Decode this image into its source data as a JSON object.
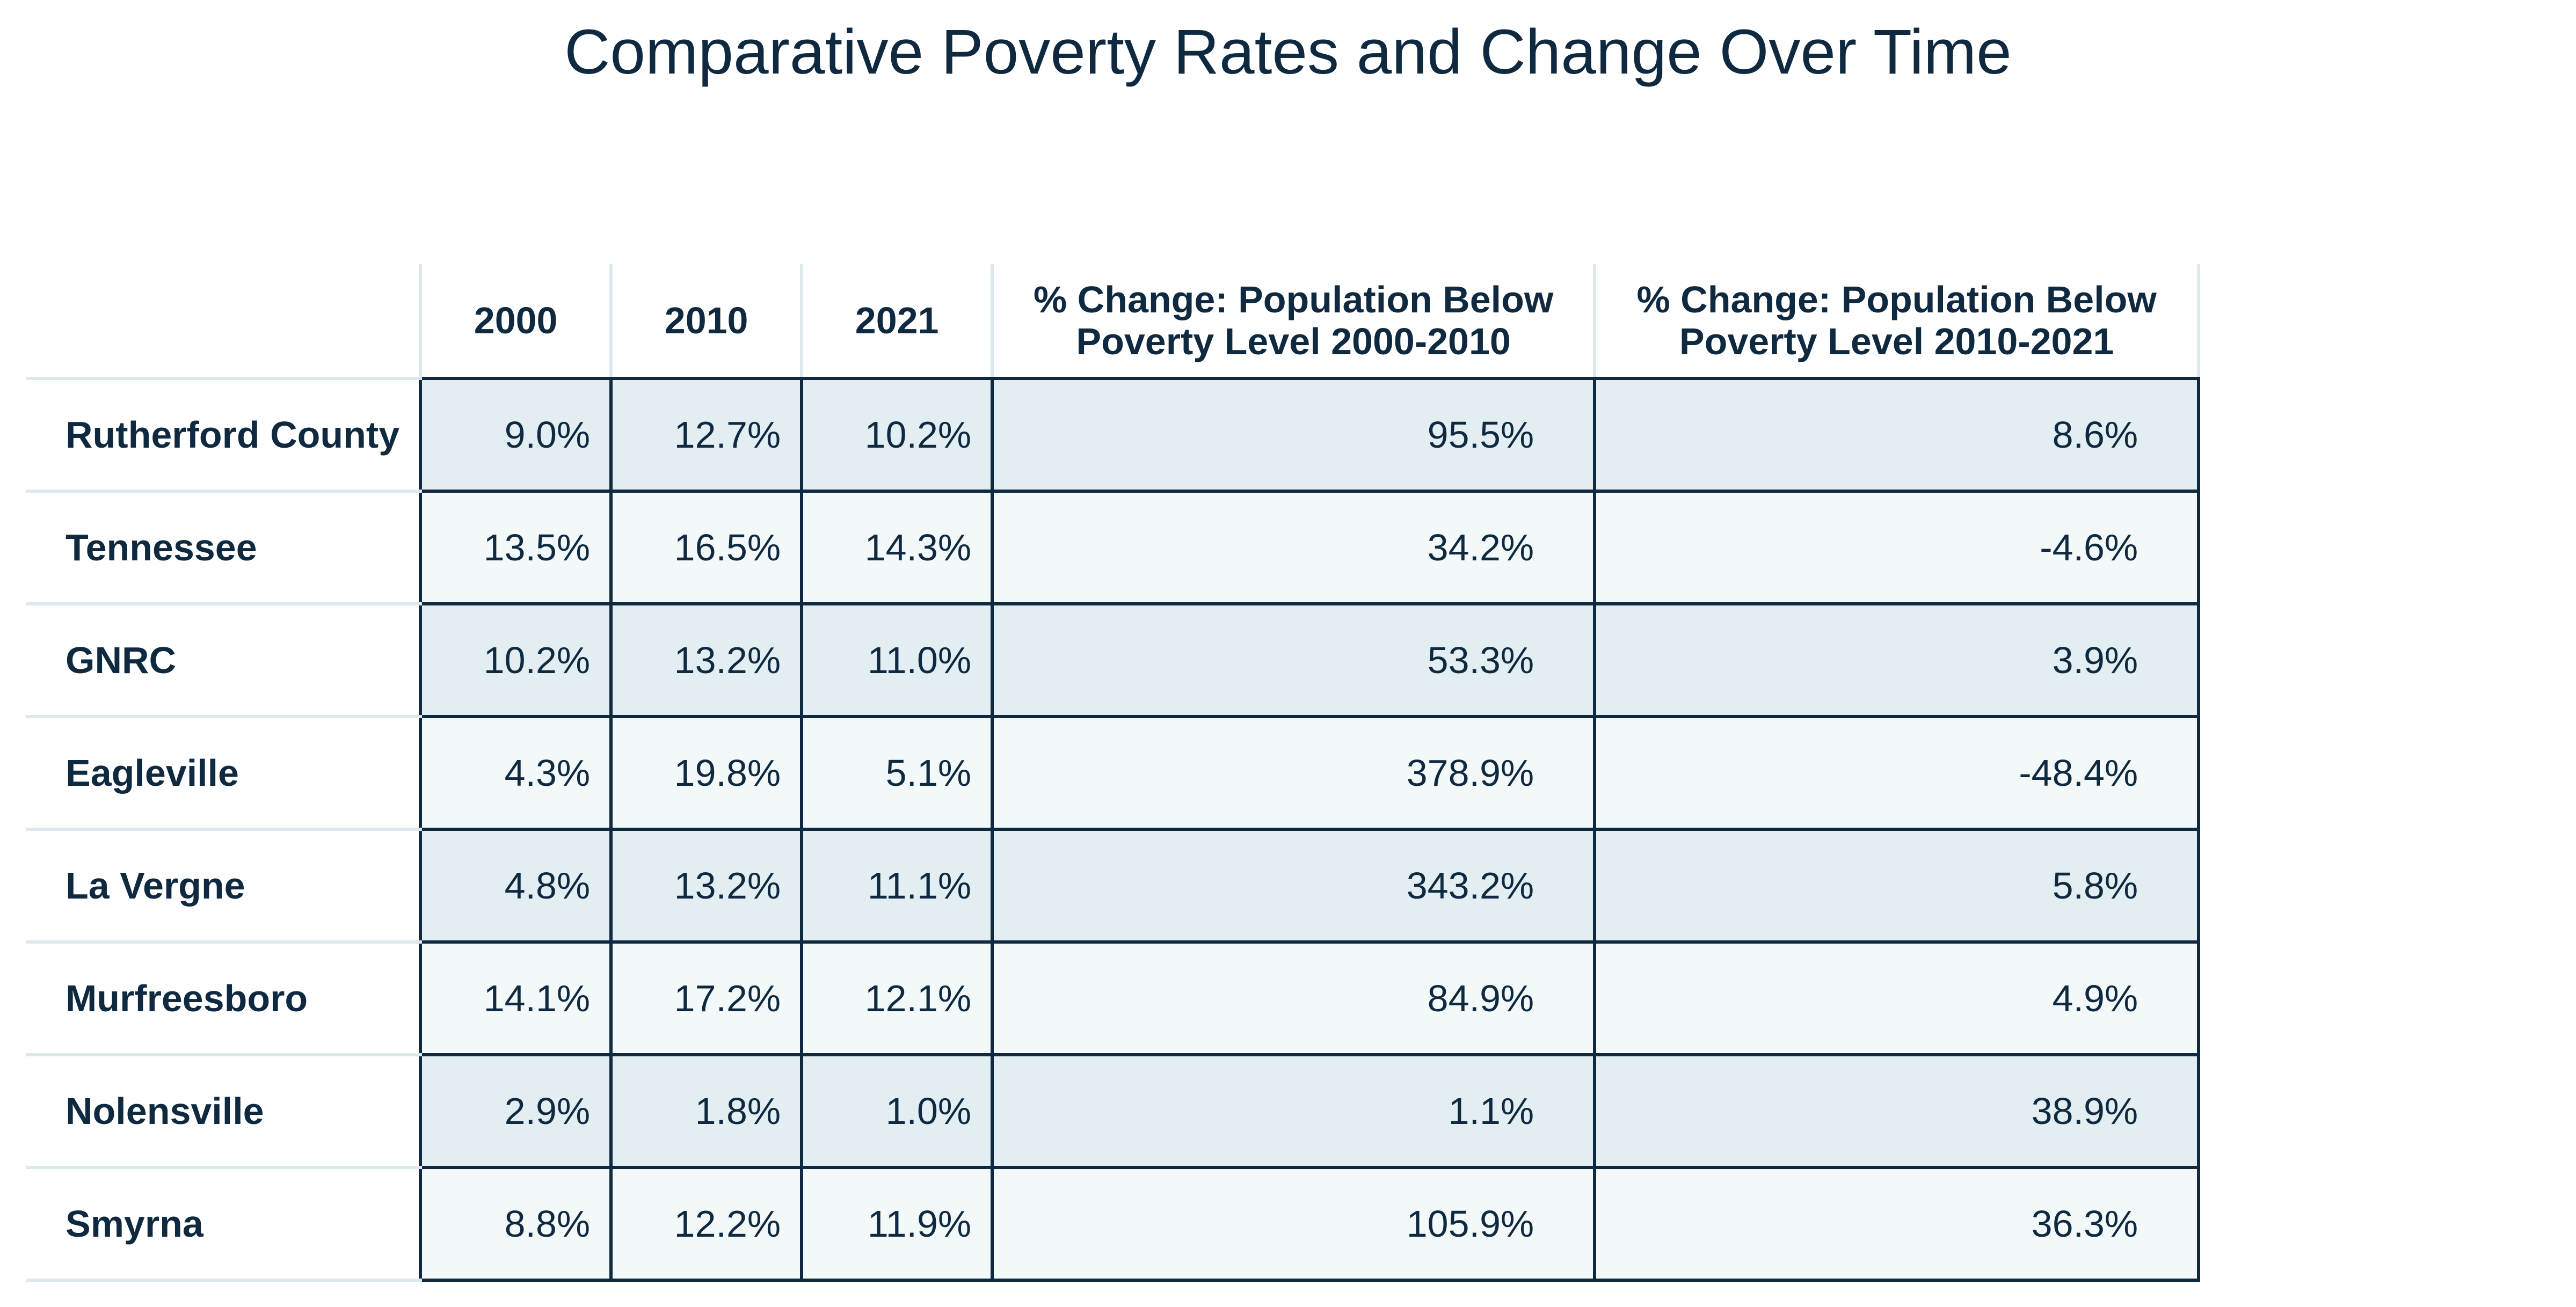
{
  "page": {
    "title": "Comparative Poverty Rates and Change Over Time"
  },
  "table": {
    "headers": [
      "",
      "2000",
      "2010",
      "2021",
      "% Change: Population Below Poverty Level 2000-2010",
      "% Change: Population Below Poverty Level 2010-2021"
    ],
    "rows": [
      {
        "name": "Rutherford County",
        "cells": [
          "9.0%",
          "12.7%",
          "10.2%",
          "95.5%",
          "8.6%"
        ]
      },
      {
        "name": "Tennessee",
        "cells": [
          "13.5%",
          "16.5%",
          "14.3%",
          "34.2%",
          "-4.6%"
        ]
      },
      {
        "name": "GNRC",
        "cells": [
          "10.2%",
          "13.2%",
          "11.0%",
          "53.3%",
          "3.9%"
        ]
      },
      {
        "name": "Eagleville",
        "cells": [
          "4.3%",
          "19.8%",
          "5.1%",
          "378.9%",
          "-48.4%"
        ]
      },
      {
        "name": "La Vergne",
        "cells": [
          "4.8%",
          "13.2%",
          "11.1%",
          "343.2%",
          "5.8%"
        ]
      },
      {
        "name": "Murfreesboro",
        "cells": [
          "14.1%",
          "17.2%",
          "12.1%",
          "84.9%",
          "4.9%"
        ]
      },
      {
        "name": "Nolensville",
        "cells": [
          "2.9%",
          "1.8%",
          "1.0%",
          "1.1%",
          "38.9%"
        ]
      },
      {
        "name": "Smyrna",
        "cells": [
          "8.8%",
          "12.2%",
          "11.9%",
          "105.9%",
          "36.3%"
        ]
      }
    ]
  },
  "colors": {
    "text": "#0f2a40",
    "border": "#0f2a40",
    "light_border": "#dde8ee",
    "row_odd": "#e2eef2",
    "row_even": "#f3f8f9"
  }
}
